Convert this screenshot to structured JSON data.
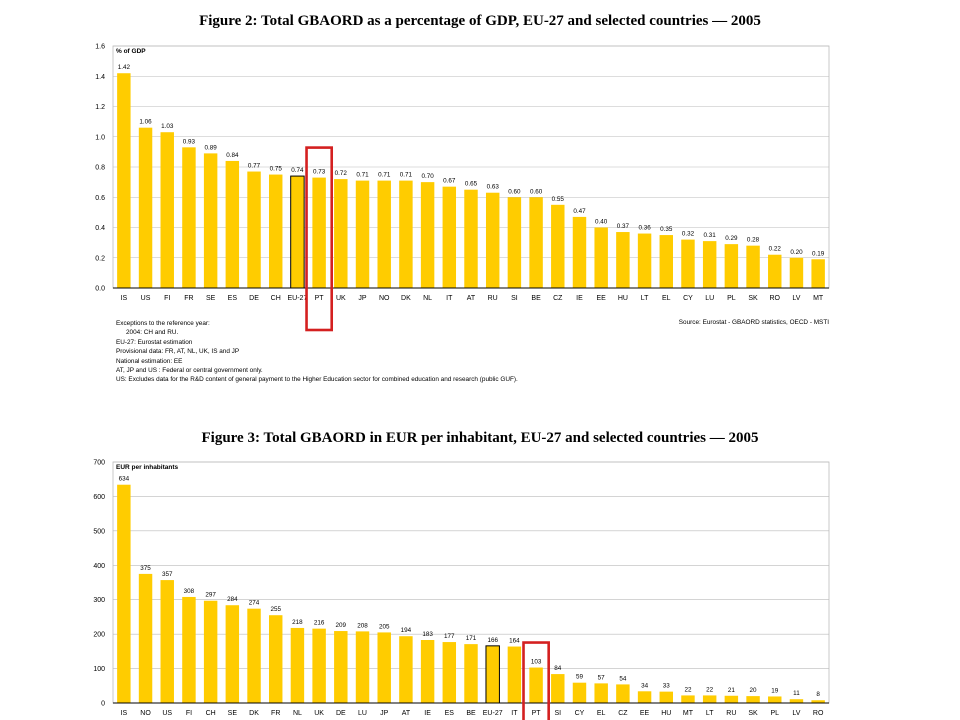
{
  "figure2": {
    "title": "Figure 2: Total GBAORD as a percentage of GDP, EU-27 and selected countries — 2005",
    "notes": [
      "Exceptions to the reference year:",
      "2004: CH and RU.",
      "EU-27: Eurostat estimation",
      "Provisional data:  FR, AT, NL, UK, IS and JP",
      "National estimation: EE",
      "AT, JP and US : Federal or central government only.",
      "US: Excludes data for the R&D content of general payment to the Higher Education sector for combined education and research (public GUF)."
    ],
    "source": "Source: Eurostat - GBAORD statistics, OECD - MSTI"
  },
  "figure3": {
    "title": "Figure 3: Total GBAORD in EUR per inhabitant, EU-27 and selected countries — 2005"
  },
  "colors": {
    "bar": "#FFCC00",
    "highlight_bar": "#FFCC00",
    "highlight_bar_stroke": "#000000",
    "highlight_box": "#D42020",
    "grid": "#BBBBBB",
    "axis": "#000000"
  },
  "chart_data": [
    {
      "type": "bar",
      "title": "Figure 2: Total GBAORD as a percentage of GDP, EU-27 and selected countries — 2005",
      "ylabel": "% of GDP",
      "ylim": [
        0,
        1.6
      ],
      "yticks": [
        "0.0",
        "0.2",
        "0.4",
        "0.6",
        "0.8",
        "1.0",
        "1.2",
        "1.4",
        "1.6"
      ],
      "grid": true,
      "categories": [
        "IS",
        "US",
        "FI",
        "FR",
        "SE",
        "ES",
        "DE",
        "CH",
        "EU-27",
        "PT",
        "UK",
        "JP",
        "NO",
        "DK",
        "NL",
        "IT",
        "AT",
        "RU",
        "SI",
        "BE",
        "CZ",
        "IE",
        "EE",
        "HU",
        "LT",
        "EL",
        "CY",
        "LU",
        "PL",
        "SK",
        "RO",
        "LV",
        "MT"
      ],
      "values": [
        1.42,
        1.06,
        1.03,
        0.93,
        0.89,
        0.84,
        0.77,
        0.75,
        0.74,
        0.73,
        0.72,
        0.71,
        0.71,
        0.71,
        0.7,
        0.67,
        0.65,
        0.63,
        0.6,
        0.6,
        0.55,
        0.47,
        0.4,
        0.37,
        0.36,
        0.35,
        0.32,
        0.31,
        0.29,
        0.28,
        0.22,
        0.2,
        0.19
      ],
      "value_labels": [
        "1.42",
        "1.06",
        "1.03",
        "0.93",
        "0.89",
        "0.84",
        "0.77",
        "0.75",
        "0.74",
        "0.73",
        "0.72",
        "0.71",
        "0.71",
        "0.71",
        "0.70",
        "0.67",
        "0.65",
        "0.63",
        "0.60",
        "0.60",
        "0.55",
        "0.47",
        "0.40",
        "0.37",
        "0.36",
        "0.35",
        "0.32",
        "0.31",
        "0.29",
        "0.28",
        "0.22",
        "0.20",
        "0.19"
      ],
      "outlined_category": "EU-27",
      "highlighted_category": "PT"
    },
    {
      "type": "bar",
      "title": "Figure 3: Total GBAORD in EUR per inhabitant, EU-27 and selected countries — 2005",
      "ylabel": "EUR per inhabitants",
      "ylim": [
        0,
        700
      ],
      "yticks": [
        "0",
        "100",
        "200",
        "300",
        "400",
        "500",
        "600",
        "700"
      ],
      "grid": true,
      "categories": [
        "IS",
        "NO",
        "US",
        "FI",
        "CH",
        "SE",
        "DK",
        "FR",
        "NL",
        "UK",
        "DE",
        "LU",
        "JP",
        "AT",
        "IE",
        "ES",
        "BE",
        "EU-27",
        "IT",
        "PT",
        "SI",
        "CY",
        "EL",
        "CZ",
        "EE",
        "HU",
        "MT",
        "LT",
        "RU",
        "SK",
        "PL",
        "LV",
        "RO"
      ],
      "values": [
        634,
        375,
        357,
        308,
        297,
        284,
        274,
        255,
        218,
        216,
        209,
        208,
        205,
        194,
        183,
        177,
        171,
        166,
        164,
        103,
        84,
        59,
        57,
        54,
        34,
        33,
        22,
        22,
        21,
        20,
        19,
        11,
        8
      ],
      "value_labels": [
        "634",
        "375",
        "357",
        "308",
        "297",
        "284",
        "274",
        "255",
        "218",
        "216",
        "209",
        "208",
        "205",
        "194",
        "183",
        "177",
        "171",
        "166",
        "164",
        "103",
        "84",
        "59",
        "57",
        "54",
        "34",
        "33",
        "22",
        "22",
        "21",
        "20",
        "19",
        "11",
        "8"
      ],
      "outlined_category": "EU-27",
      "highlighted_category": "PT"
    }
  ]
}
